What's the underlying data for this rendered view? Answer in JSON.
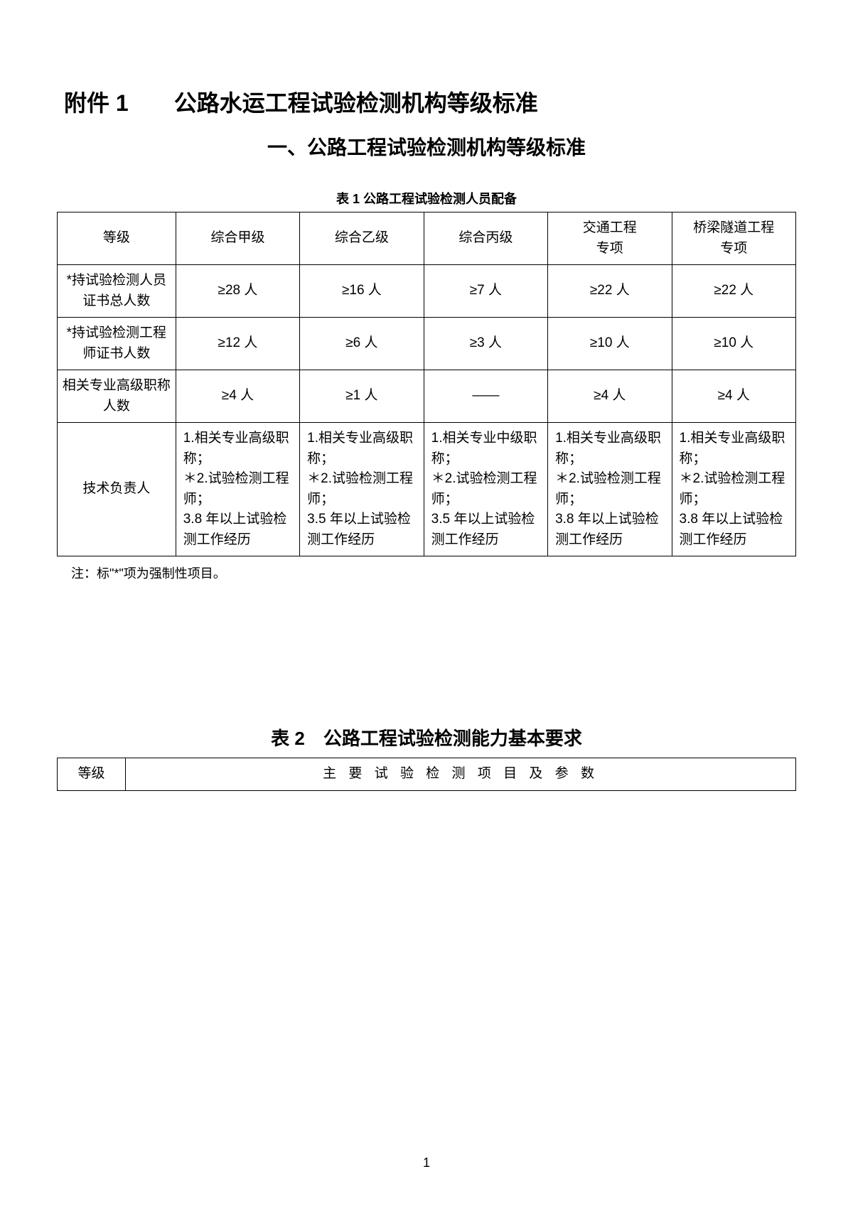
{
  "title_main": "附件 1　　公路水运工程试验检测机构等级标准",
  "title_sub": "一、公路工程试验检测机构等级标准",
  "table1_caption": "表 1 公路工程试验检测人员配备",
  "table1": {
    "header": {
      "c0": "等级",
      "c1": "综合甲级",
      "c2": "综合乙级",
      "c3": "综合丙级",
      "c4": "交通工程\n专项",
      "c5": "桥梁隧道工程\n专项"
    },
    "rows": [
      {
        "label": "*持试验检测人员\n证书总人数",
        "c1": "≥28 人",
        "c2": "≥16 人",
        "c3": "≥7 人",
        "c4": "≥22 人",
        "c5": "≥22 人"
      },
      {
        "label": "*持试验检测工程\n师证书人数",
        "c1": "≥12 人",
        "c2": "≥6 人",
        "c3": "≥3 人",
        "c4": "≥10 人",
        "c5": "≥10 人"
      },
      {
        "label": "相关专业高级职称\n人数",
        "c1": "≥4 人",
        "c2": "≥1 人",
        "c3": "——",
        "c4": "≥4 人",
        "c5": "≥4 人"
      },
      {
        "label": "技术负责人",
        "c1": "1.相关专业高级职称；\n＊2.试验检测工程师；\n3.8 年以上试验检测工作经历",
        "c2": "1.相关专业高级职称；\n＊2.试验检测工程师；\n3.5 年以上试验检测工作经历",
        "c3": "1.相关专业中级职称；\n＊2.试验检测工程师；\n3.5 年以上试验检测工作经历",
        "c4": "1.相关专业高级职称；\n＊2.试验检测工程师；\n3.8 年以上试验检测工作经历",
        "c5": "1.相关专业高级职称；\n＊2.试验检测工程师；\n3.8 年以上试验检测工作经历"
      }
    ]
  },
  "note": "注：标\"*\"项为强制性项目。",
  "table2_title": "表 2　公路工程试验检测能力基本要求",
  "table2_header": {
    "c0": "等级",
    "c1": "主 要 试 验 检 测 项 目 及 参 数"
  },
  "page_number": "1"
}
